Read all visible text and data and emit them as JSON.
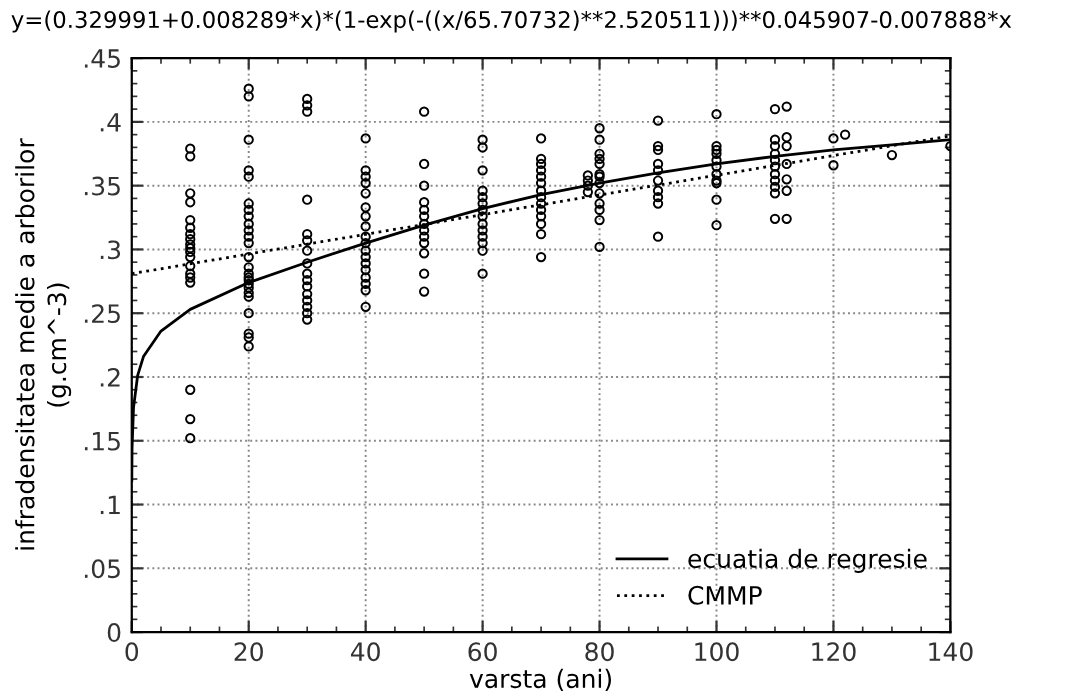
{
  "chart_data": {
    "type": "scatter",
    "title": "y=(0.329991+0.008289*x)*(1-exp(-((x/65.70732)**2.520511)))**0.045907-0.007888*x",
    "xlabel": "varsta (ani)",
    "ylabel": "infradensitatea medie a arborilor\n(g.cm^-3)",
    "xlim": [
      0,
      140
    ],
    "xticks": [
      0,
      20,
      40,
      60,
      80,
      100,
      120,
      140
    ],
    "ylim": [
      0,
      0.45
    ],
    "yticks": [
      0,
      {
        "value": 0.05,
        "label": ".05"
      },
      {
        "value": 0.1,
        "label": ".1"
      },
      {
        "value": 0.15,
        "label": ".15"
      },
      {
        "value": 0.2,
        "label": ".2"
      },
      {
        "value": 0.25,
        "label": ".25"
      },
      {
        "value": 0.3,
        "label": ".3"
      },
      {
        "value": 0.35,
        "label": ".35"
      },
      {
        "value": 0.4,
        "label": ".4"
      },
      {
        "value": 0.45,
        "label": ".45"
      }
    ],
    "grid": true,
    "legend": "bottom right",
    "series": [
      {
        "color": "#000000",
        "marker": "circle",
        "x": [
          10,
          10,
          10,
          10,
          10,
          10,
          10,
          10,
          10,
          10,
          10,
          10,
          10,
          10,
          10,
          10,
          10,
          10,
          10,
          20,
          20,
          20,
          20,
          20,
          20,
          20,
          20,
          20,
          20,
          20,
          20,
          20,
          20,
          20,
          20,
          20,
          20,
          20,
          20,
          20,
          20,
          20,
          20,
          20,
          30,
          30,
          30,
          30,
          30,
          30,
          30,
          30,
          30,
          30,
          30,
          30,
          30,
          30,
          30,
          30,
          40,
          40,
          40,
          40,
          40,
          40,
          40,
          40,
          40,
          40,
          40,
          40,
          40,
          40,
          40,
          40,
          40,
          40,
          50,
          50,
          50,
          50,
          50,
          50,
          50,
          50,
          50,
          50,
          50,
          50,
          50,
          60,
          60,
          60,
          60,
          60,
          60,
          60,
          60,
          60,
          60,
          60,
          60,
          60,
          60,
          70,
          70,
          70,
          70,
          70,
          70,
          70,
          70,
          70,
          70,
          70,
          70,
          70,
          70,
          78,
          78,
          78,
          78,
          80,
          80,
          80,
          80,
          80,
          80,
          80,
          80,
          80,
          80,
          80,
          80,
          80,
          90,
          90,
          90,
          90,
          90,
          90,
          90,
          90,
          90,
          90,
          100,
          100,
          100,
          100,
          100,
          100,
          100,
          100,
          100,
          100,
          100,
          110,
          110,
          110,
          110,
          110,
          110,
          110,
          110,
          110,
          110,
          110,
          112,
          112,
          112,
          112,
          112,
          112,
          112,
          120,
          120,
          122,
          130,
          140
        ],
        "values": [
          0.379,
          0.373,
          0.344,
          0.337,
          0.323,
          0.317,
          0.312,
          0.308,
          0.304,
          0.301,
          0.298,
          0.294,
          0.287,
          0.281,
          0.278,
          0.274,
          0.19,
          0.167,
          0.152,
          0.426,
          0.42,
          0.386,
          0.362,
          0.357,
          0.336,
          0.331,
          0.326,
          0.32,
          0.315,
          0.31,
          0.305,
          0.294,
          0.286,
          0.281,
          0.278,
          0.276,
          0.273,
          0.27,
          0.266,
          0.263,
          0.25,
          0.234,
          0.231,
          0.224,
          0.418,
          0.413,
          0.408,
          0.339,
          0.312,
          0.307,
          0.299,
          0.289,
          0.281,
          0.276,
          0.271,
          0.265,
          0.26,
          0.255,
          0.25,
          0.245,
          0.387,
          0.362,
          0.357,
          0.352,
          0.344,
          0.333,
          0.326,
          0.318,
          0.31,
          0.305,
          0.299,
          0.294,
          0.289,
          0.284,
          0.278,
          0.273,
          0.268,
          0.255,
          0.408,
          0.367,
          0.35,
          0.337,
          0.331,
          0.326,
          0.32,
          0.315,
          0.31,
          0.305,
          0.297,
          0.281,
          0.267,
          0.386,
          0.38,
          0.362,
          0.346,
          0.341,
          0.336,
          0.331,
          0.326,
          0.32,
          0.315,
          0.31,
          0.305,
          0.299,
          0.281,
          0.387,
          0.371,
          0.367,
          0.362,
          0.357,
          0.352,
          0.346,
          0.341,
          0.336,
          0.331,
          0.326,
          0.32,
          0.312,
          0.294,
          0.358,
          0.354,
          0.35,
          0.345,
          0.395,
          0.386,
          0.375,
          0.371,
          0.367,
          0.359,
          0.357,
          0.352,
          0.344,
          0.336,
          0.331,
          0.323,
          0.302,
          0.401,
          0.381,
          0.378,
          0.367,
          0.362,
          0.354,
          0.346,
          0.341,
          0.336,
          0.31,
          0.406,
          0.381,
          0.378,
          0.375,
          0.37,
          0.365,
          0.359,
          0.354,
          0.352,
          0.339,
          0.319,
          0.41,
          0.386,
          0.381,
          0.375,
          0.37,
          0.365,
          0.359,
          0.354,
          0.349,
          0.344,
          0.324,
          0.412,
          0.388,
          0.381,
          0.367,
          0.355,
          0.346,
          0.324,
          0.387,
          0.366,
          0.39,
          0.374,
          0.381
        ]
      },
      {
        "type": "line",
        "name": "ecuatia de regresie",
        "color": "#000000",
        "line_style": "solid",
        "x": [
          0.01,
          0.05,
          0.3,
          1,
          2,
          5,
          10,
          20,
          30,
          40,
          50,
          60,
          70,
          80,
          90,
          100,
          110,
          120,
          130,
          140
        ],
        "values": [
          0.119,
          0.144,
          0.176,
          0.201,
          0.216,
          0.236,
          0.253,
          0.274,
          0.29,
          0.305,
          0.319,
          0.332,
          0.343,
          0.352,
          0.36,
          0.367,
          0.373,
          0.378,
          0.382,
          0.386
        ]
      },
      {
        "type": "line",
        "name": "CMMP",
        "color": "#000000",
        "line_style": "dotted",
        "x": [
          0,
          140
        ],
        "values": [
          0.281,
          0.389
        ]
      }
    ]
  }
}
